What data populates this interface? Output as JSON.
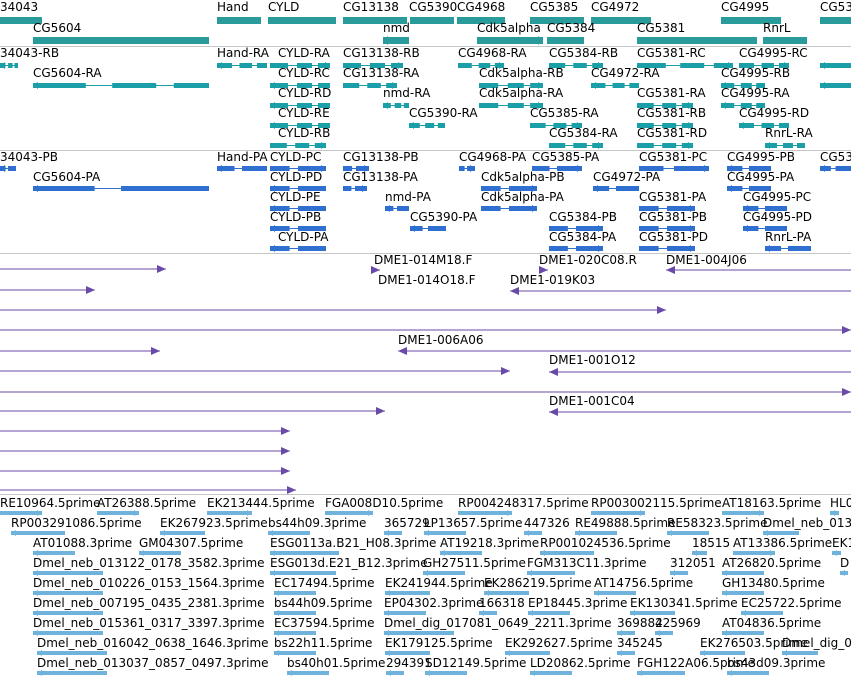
{
  "colors": {
    "gene": "#2a9b9b",
    "transcript": "#1a9fa8",
    "protein": "#2f6fd0",
    "clone": "#6a4aa8",
    "est": "#6fb3dc",
    "divider": "#c6c6c6",
    "text": "#000000"
  },
  "tracks": [
    {
      "name": "genes",
      "features": [
        {
          "label": "34043"
        },
        {
          "label": "Hand"
        },
        {
          "label": "CYLD"
        },
        {
          "label": "CG13138"
        },
        {
          "label": "CG5390"
        },
        {
          "label": "CG4968"
        },
        {
          "label": "CG5385"
        },
        {
          "label": "CG4972"
        },
        {
          "label": "CG4995"
        },
        {
          "label": "CG53"
        },
        {
          "label": "CG5604"
        },
        {
          "label": "nmd"
        },
        {
          "label": "Cdk5alpha"
        },
        {
          "label": "CG5384"
        },
        {
          "label": "CG5381"
        },
        {
          "label": "RnrL"
        }
      ]
    },
    {
      "name": "transcripts",
      "features": [
        {
          "label": "34043-RB"
        },
        {
          "label": "Hand-RA"
        },
        {
          "label": "CYLD-RA"
        },
        {
          "label": "CG13138-RB"
        },
        {
          "label": "CG4968-RA"
        },
        {
          "label": "CG5384-RB"
        },
        {
          "label": "CG5381-RC"
        },
        {
          "label": "CG4995-RC"
        },
        {
          "label": "CG5604-RA"
        },
        {
          "label": "CYLD-RC"
        },
        {
          "label": "CG13138-RA"
        },
        {
          "label": "Cdk5alpha-RB"
        },
        {
          "label": "CG4972-RA"
        },
        {
          "label": "CG4995-RB"
        },
        {
          "label": "CYLD-RD"
        },
        {
          "label": "nmd-RA"
        },
        {
          "label": "Cdk5alpha-RA"
        },
        {
          "label": "CG5381-RA"
        },
        {
          "label": "CG4995-RA"
        },
        {
          "label": "CYLD-RE"
        },
        {
          "label": "CG5390-RA"
        },
        {
          "label": "CG5385-RA"
        },
        {
          "label": "CG5381-RB"
        },
        {
          "label": "CG4995-RD"
        },
        {
          "label": "CYLD-RB"
        },
        {
          "label": "CG5384-RA"
        },
        {
          "label": "CG5381-RD"
        },
        {
          "label": "RnrL-RA"
        }
      ]
    },
    {
      "name": "proteins",
      "features": [
        {
          "label": "34043-PB"
        },
        {
          "label": "Hand-PA"
        },
        {
          "label": "CYLD-PC"
        },
        {
          "label": "CG13138-PB"
        },
        {
          "label": "CG4968-PA"
        },
        {
          "label": "CG5385-PA"
        },
        {
          "label": "CG5381-PC"
        },
        {
          "label": "CG4995-PB"
        },
        {
          "label": "CG53"
        },
        {
          "label": "CG5604-PA"
        },
        {
          "label": "CYLD-PD"
        },
        {
          "label": "CG13138-PA"
        },
        {
          "label": "Cdk5alpha-PB"
        },
        {
          "label": "CG4972-PA"
        },
        {
          "label": "CG4995-PA"
        },
        {
          "label": "CYLD-PE"
        },
        {
          "label": "nmd-PA"
        },
        {
          "label": "Cdk5alpha-PA"
        },
        {
          "label": "CG5381-PA"
        },
        {
          "label": "CG4995-PC"
        },
        {
          "label": "CYLD-PB"
        },
        {
          "label": "CG5390-PA"
        },
        {
          "label": "CG5384-PB"
        },
        {
          "label": "CG5381-PB"
        },
        {
          "label": "CG4995-PD"
        },
        {
          "label": "CYLD-PA"
        },
        {
          "label": "CG5384-PA"
        },
        {
          "label": "CG5381-PD"
        },
        {
          "label": "RnrL-PA"
        }
      ]
    },
    {
      "name": "clones",
      "features": [
        {
          "label": "DME1-014M18.F"
        },
        {
          "label": "DME1-020C08.R"
        },
        {
          "label": "DME1-004J06"
        },
        {
          "label": "DME1-014O18.F"
        },
        {
          "label": "DME1-019K03"
        },
        {
          "label": "DME1-006A06"
        },
        {
          "label": "DME1-001O12"
        },
        {
          "label": "DME1-001C04"
        },
        {
          "label": ""
        },
        {
          "label": ""
        },
        {
          "label": ""
        },
        {
          "label": ""
        },
        {
          "label": ""
        },
        {
          "label": ""
        },
        {
          "label": ""
        },
        {
          "label": ""
        },
        {
          "label": ""
        },
        {
          "label": ""
        },
        {
          "label": ""
        },
        {
          "label": ""
        },
        {
          "label": ""
        },
        {
          "label": ""
        }
      ]
    },
    {
      "name": "est",
      "features": [
        {
          "label": "RE10964.5prime"
        },
        {
          "label": "AT26388.5prime"
        },
        {
          "label": "EK213444.5prime"
        },
        {
          "label": "FGA008D10.5prime"
        },
        {
          "label": "RP004248317.5prime"
        },
        {
          "label": "RP003002115.5prime"
        },
        {
          "label": "AT18163.5prime"
        },
        {
          "label": "HL0"
        },
        {
          "label": "RP003291086.5prime"
        },
        {
          "label": "EK267923.5prime"
        },
        {
          "label": "bs44h09.3prime"
        },
        {
          "label": "365729"
        },
        {
          "label": "LP13657.5prime"
        },
        {
          "label": "447326"
        },
        {
          "label": "RE49888.5prime"
        },
        {
          "label": "RE58323.5prime"
        },
        {
          "label": "Dmel_neb_013"
        },
        {
          "label": "AT01088.3prime"
        },
        {
          "label": "GM04307.5prime"
        },
        {
          "label": "ESG0113a.B21_H08.3prime"
        },
        {
          "label": "AT19218.3prime"
        },
        {
          "label": "RP001024536.5prime"
        },
        {
          "label": "18515"
        },
        {
          "label": "AT13386.5prime"
        },
        {
          "label": "EK1"
        },
        {
          "label": "Dmel_neb_013122_0178_3582.3prime"
        },
        {
          "label": "ESG013d.E21_B12.3prime"
        },
        {
          "label": "GH27511.5prime"
        },
        {
          "label": "FGM313C11.3prime"
        },
        {
          "label": "312051"
        },
        {
          "label": "AT26820.5prime"
        },
        {
          "label": "D"
        },
        {
          "label": "Dmel_neb_010226_0153_1564.3prime"
        },
        {
          "label": "EC17494.5prime"
        },
        {
          "label": "EK241944.5prime"
        },
        {
          "label": "EK286219.5prime"
        },
        {
          "label": "AT14756.5prime"
        },
        {
          "label": "GH13480.5prime"
        },
        {
          "label": "Dmel_neb_007195_0435_2381.3prime"
        },
        {
          "label": "bs44h09.5prime"
        },
        {
          "label": "EP04302.3prime"
        },
        {
          "label": "166318"
        },
        {
          "label": "EP18445.3prime"
        },
        {
          "label": "EK130341.5prime"
        },
        {
          "label": "EC25722.5prime"
        },
        {
          "label": "Dmel_neb_015361_0317_3397.3prime"
        },
        {
          "label": "EC37594.5prime"
        },
        {
          "label": "Dmel_dig_017081_0649_2211.3prime"
        },
        {
          "label": "369882"
        },
        {
          "label": "425969"
        },
        {
          "label": "AT04836.5prime"
        },
        {
          "label": "Dmel_neb_016042_0638_1646.3prime"
        },
        {
          "label": "bs22h11.5prime"
        },
        {
          "label": "EK179125.5prime"
        },
        {
          "label": "EK292627.5prime"
        },
        {
          "label": "345245"
        },
        {
          "label": "EK276503.5prime"
        },
        {
          "label": "Dmel_dig_015"
        },
        {
          "label": "Dmel_neb_013037_0857_0497.3prime"
        },
        {
          "label": "bs40h01.5prime"
        },
        {
          "label": "294391"
        },
        {
          "label": "SD12149.5prime"
        },
        {
          "label": "LD20862.5prime"
        },
        {
          "label": "FGH122A06.5prime"
        },
        {
          "label": "bs43d09.3prime"
        }
      ]
    }
  ]
}
